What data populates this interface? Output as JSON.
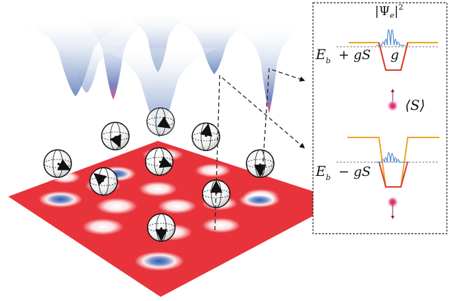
{
  "inset": {
    "psi_label": "|Ψe|",
    "psi_sub": "e",
    "psi_power": "2",
    "top_eb": "E",
    "top_eb_sub": "b",
    "top_shift": "+ gS",
    "top_g": "g",
    "spin_avg": "⟨S⟩",
    "bottom_eb": "E",
    "bottom_eb_sub": "b",
    "bottom_shift": "− gS"
  },
  "colors": {
    "lattice_red": "#e8333a",
    "well_blue": "#3a67b8",
    "potential_orange": "#f0a020",
    "spin_magenta": "#d41e6a"
  }
}
